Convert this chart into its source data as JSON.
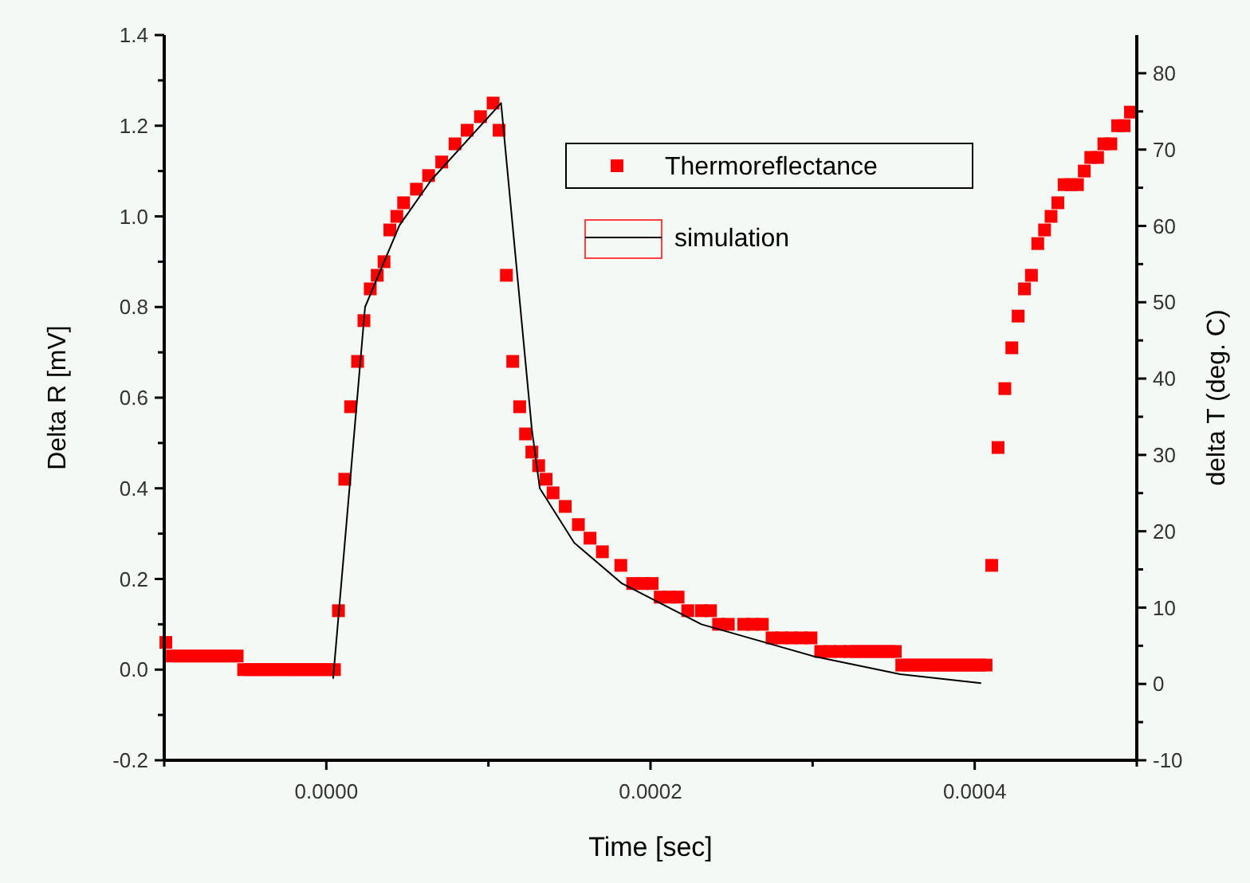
{
  "chart_data": {
    "type": "scatter",
    "xlabel": "Time [sec]",
    "ylabel": "Delta R [mV]",
    "y2label": "delta T (deg. C)",
    "xlim": [
      -0.0001,
      0.0005
    ],
    "xticks": [
      {
        "value": -0.0001,
        "label": null
      },
      {
        "value": 0,
        "label": "0.0000"
      },
      {
        "value": 0.0001,
        "label": null
      },
      {
        "value": 0.0002,
        "label": "0.0002"
      },
      {
        "value": 0.0003,
        "label": null
      },
      {
        "value": 0.0004,
        "label": "0.0004"
      },
      {
        "value": 0.0005,
        "label": null
      }
    ],
    "ylim": [
      -0.2,
      1.4
    ],
    "yticks": [
      {
        "value": -0.2,
        "label": "-0.2"
      },
      {
        "value": -0.1,
        "label": null
      },
      {
        "value": 0,
        "label": "0.0"
      },
      {
        "value": 0.1,
        "label": null
      },
      {
        "value": 0.2,
        "label": "0.2"
      },
      {
        "value": 0.3,
        "label": null
      },
      {
        "value": 0.4,
        "label": "0.4"
      },
      {
        "value": 0.5,
        "label": null
      },
      {
        "value": 0.6,
        "label": "0.6"
      },
      {
        "value": 0.7,
        "label": null
      },
      {
        "value": 0.8,
        "label": "0.8"
      },
      {
        "value": 0.9,
        "label": null
      },
      {
        "value": 1.0,
        "label": "1.0"
      },
      {
        "value": 1.1,
        "label": null
      },
      {
        "value": 1.2,
        "label": "1.2"
      },
      {
        "value": 1.3,
        "label": null
      },
      {
        "value": 1.4,
        "label": "1.4"
      }
    ],
    "y2lim": [
      -10,
      85
    ],
    "y2ticks": [
      -10,
      {
        "value": -5,
        "label": null
      },
      0,
      {
        "value": 5,
        "label": null
      },
      10,
      {
        "value": 15,
        "label": null
      },
      20,
      {
        "value": 25,
        "label": null
      },
      30,
      {
        "value": 35,
        "label": null
      },
      40,
      {
        "value": 45,
        "label": null
      },
      50,
      {
        "value": 55,
        "label": null
      },
      60,
      {
        "value": 65,
        "label": null
      },
      70,
      {
        "value": 75,
        "label": null
      },
      80
    ],
    "grid": false,
    "legend": "top right",
    "series": [
      {
        "name": "Thermoreflectance",
        "marker": "square",
        "color": "#ff0000",
        "x": [
          -9.9e-05,
          -9.5e-05,
          -9.1e-05,
          -8.7e-05,
          -8.3e-05,
          -7.9e-05,
          -7.5e-05,
          -7.1e-05,
          -6.7e-05,
          -6.3e-05,
          -5.9e-05,
          -5.5e-05,
          -5.1e-05,
          -4.7e-05,
          -4.3e-05,
          -3.9e-05,
          -3.5e-05,
          -3.1e-05,
          -2.7e-05,
          -2.3e-05,
          -1.9e-05,
          -1.5e-05,
          -1.1e-05,
          -7e-06,
          -3e-06,
          1e-06,
          5e-06,
          7.5e-06,
          1.14e-05,
          1.5e-05,
          1.93e-05,
          2.32e-05,
          2.71e-05,
          3.14e-05,
          3.56e-05,
          3.92e-05,
          4.35e-05,
          4.77e-05,
          5.56e-05,
          6.31e-05,
          7.12e-05,
          7.94e-05,
          8.69e-05,
          9.51e-05,
          0.0001029,
          0.0001066,
          0.0001111,
          0.000115,
          0.0001193,
          0.0001229,
          0.0001268,
          0.000131,
          0.0001356,
          0.0001399,
          0.0001474,
          0.0001555,
          0.0001627,
          0.0001703,
          0.0001817,
          0.000189,
          0.0001954,
          0.000201,
          0.000206,
          0.0002118,
          0.000217,
          0.000223,
          0.0002314,
          0.000237,
          0.000242,
          0.000248,
          0.0002575,
          0.000263,
          0.000269,
          0.000275,
          0.000281,
          0.000287,
          0.000293,
          0.000299,
          0.000305,
          0.000311,
          0.000317,
          0.0003229,
          0.000327,
          0.000331,
          0.000335,
          0.000339,
          0.000343,
          0.000347,
          0.000351,
          0.000355,
          0.000359,
          0.000363,
          0.000367,
          0.000371,
          0.000375,
          0.000379,
          0.000383,
          0.000387,
          0.000391,
          0.000395,
          0.000399,
          0.000403,
          0.000407,
          0.0004105,
          0.0004144,
          0.0004186,
          0.0004229,
          0.0004268,
          0.0004307,
          0.000435,
          0.0004389,
          0.0004431,
          0.0004471,
          0.0004513,
          0.0004552,
          0.0004595,
          0.0004634,
          0.0004676,
          0.0004716,
          0.0004758,
          0.0004797,
          0.000484,
          0.0004882,
          0.0004922,
          0.0004961
        ],
        "values": [
          0.06,
          0.03,
          0.03,
          0.03,
          0.03,
          0.03,
          0.03,
          0.03,
          0.03,
          0.03,
          0.03,
          0.03,
          0,
          0,
          0,
          0,
          0,
          0,
          0,
          0,
          0,
          0,
          0,
          0,
          0,
          0,
          0,
          0.13,
          0.42,
          0.58,
          0.68,
          0.77,
          0.84,
          0.87,
          0.9,
          0.97,
          1.0,
          1.03,
          1.06,
          1.09,
          1.12,
          1.16,
          1.19,
          1.22,
          1.25,
          1.19,
          0.87,
          0.68,
          0.58,
          0.52,
          0.48,
          0.45,
          0.42,
          0.39,
          0.36,
          0.32,
          0.29,
          0.26,
          0.23,
          0.19,
          0.19,
          0.19,
          0.16,
          0.16,
          0.16,
          0.13,
          0.13,
          0.13,
          0.1,
          0.1,
          0.1,
          0.1,
          0.1,
          0.07,
          0.07,
          0.07,
          0.07,
          0.07,
          0.04,
          0.04,
          0.04,
          0.04,
          0.04,
          0.04,
          0.04,
          0.04,
          0.04,
          0.04,
          0.04,
          0.01,
          0.01,
          0.01,
          0.01,
          0.01,
          0.01,
          0.01,
          0.01,
          0.01,
          0.01,
          0.01,
          0.01,
          0.01,
          0.01,
          0.23,
          0.49,
          0.62,
          0.71,
          0.78,
          0.84,
          0.87,
          0.94,
          0.97,
          1.0,
          1.03,
          1.07,
          1.07,
          1.07,
          1.1,
          1.13,
          1.13,
          1.16,
          1.16,
          1.2,
          1.2,
          1.23
        ]
      },
      {
        "name": "simulation",
        "type": "line",
        "color": "#000000",
        "x": [
          4.2e-06,
          2.39e-05,
          4.51e-05,
          6.47e-05,
          0.0001078,
          0.0001268,
          0.0001317,
          0.0001529,
          0.0001824,
          0.0002314,
          0.0003,
          0.000354,
          0.000404
        ],
        "values": [
          -0.02,
          0.8,
          0.98,
          1.08,
          1.25,
          0.53,
          0.4,
          0.28,
          0.19,
          0.1,
          0.03,
          -0.01,
          -0.03
        ]
      }
    ]
  }
}
